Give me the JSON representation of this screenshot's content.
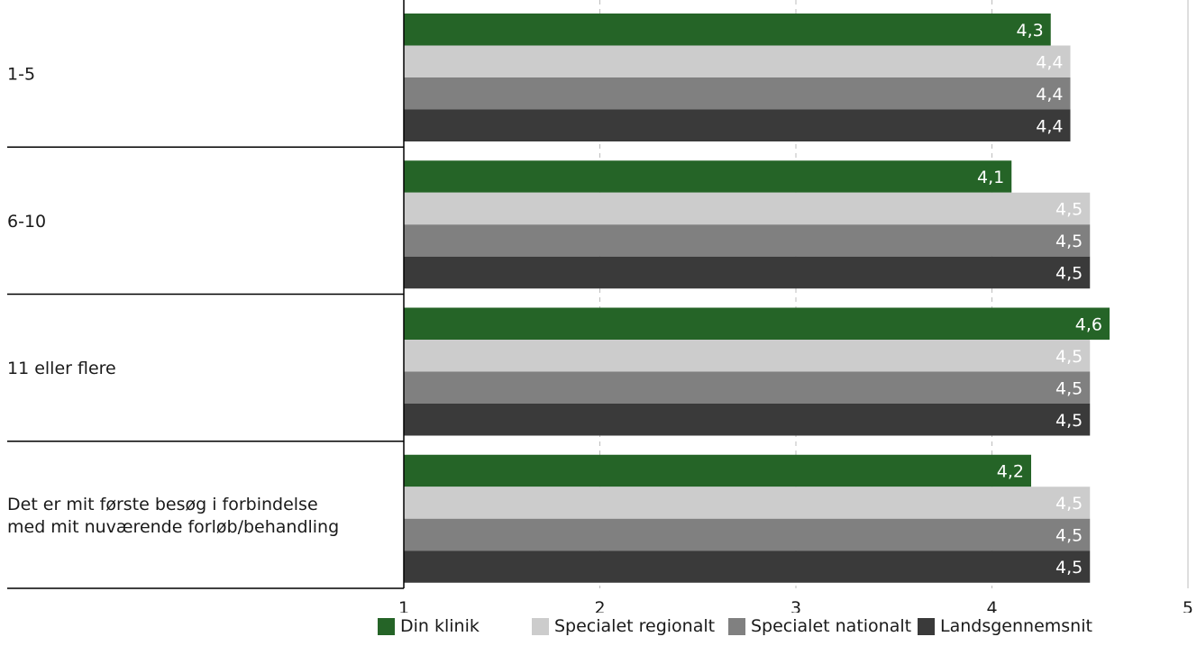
{
  "chart_data": {
    "type": "bar",
    "orientation": "horizontal",
    "categories": [
      "1-5",
      "6-10",
      "11 eller flere",
      "Det er mit første besøg i forbindelse med mit nuværende forløb/behandling"
    ],
    "category_lines": [
      [
        "1-5"
      ],
      [
        "6-10"
      ],
      [
        "11 eller flere"
      ],
      [
        "Det er mit første besøg i forbindelse",
        "med mit nuværende forløb/behandling"
      ]
    ],
    "series": [
      {
        "name": "Din klinik",
        "color": "#256427",
        "label_color": "#ffffff",
        "values": [
          4.3,
          4.1,
          4.6,
          4.2
        ]
      },
      {
        "name": "Specialet regionalt",
        "color": "#cccccc",
        "label_color": "#ffffff",
        "values": [
          4.4,
          4.5,
          4.5,
          4.5
        ]
      },
      {
        "name": "Specialet nationalt",
        "color": "#808080",
        "label_color": "#ffffff",
        "values": [
          4.4,
          4.5,
          4.5,
          4.5
        ]
      },
      {
        "name": "Landsgennemsnit",
        "color": "#3a3a3a",
        "label_color": "#ffffff",
        "values": [
          4.4,
          4.5,
          4.5,
          4.5
        ]
      }
    ],
    "value_labels": [
      [
        "4,3",
        "4,1",
        "4,6",
        "4,2"
      ],
      [
        "4,4",
        "4,5",
        "4,5",
        "4,5"
      ],
      [
        "4,4",
        "4,5",
        "4,5",
        "4,5"
      ],
      [
        "4,4",
        "4,5",
        "4,5",
        "4,5"
      ]
    ],
    "xlim": [
      1,
      5
    ],
    "x_ticks": [
      "1",
      "2",
      "3",
      "4",
      "5"
    ],
    "title": "",
    "xlabel": "",
    "ylabel": "",
    "grid": "vertical dashed",
    "legend_position": "bottom"
  }
}
